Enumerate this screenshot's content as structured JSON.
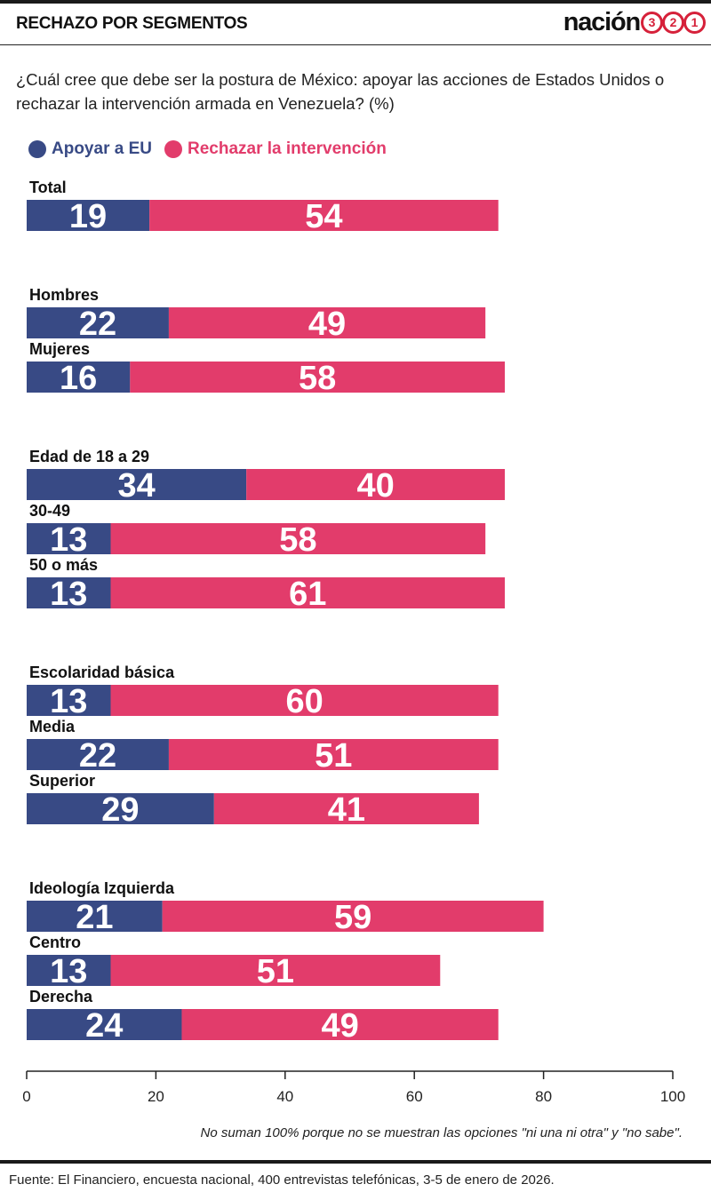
{
  "header": {
    "title": "RECHAZO POR SEGMENTOS",
    "logo_word": "nación",
    "logo_digits": [
      "3",
      "2",
      "1"
    ]
  },
  "question": "¿Cuál cree que debe ser la postura de México: apoyar las acciones de Estados Unidos o rechazar la intervención armada en Venezuela? (%)",
  "legend": {
    "support": "Apoyar a EU",
    "reject": "Rechazar la intervención"
  },
  "colors": {
    "support": "#384a85",
    "reject": "#e23c6b",
    "axis": "#222222",
    "logo_red": "#d6213a"
  },
  "chart_data": {
    "type": "bar",
    "orientation": "horizontal",
    "stacked": true,
    "categories": [
      "Total",
      "Hombres",
      "Mujeres",
      "Edad de 18 a 29",
      "30-49",
      "50 o más",
      "Escolaridad básica",
      "Media",
      "Superior",
      "Ideología Izquierda",
      "Centro",
      "Derecha"
    ],
    "groups": [
      [
        "Total"
      ],
      [
        "Hombres",
        "Mujeres"
      ],
      [
        "Edad de 18 a 29",
        "30-49",
        "50 o más"
      ],
      [
        "Escolaridad básica",
        "Media",
        "Superior"
      ],
      [
        "Ideología Izquierda",
        "Centro",
        "Derecha"
      ]
    ],
    "series": [
      {
        "name": "Apoyar a EU",
        "values": [
          19,
          22,
          16,
          34,
          13,
          13,
          13,
          22,
          29,
          21,
          13,
          24
        ]
      },
      {
        "name": "Rechazar la intervención",
        "values": [
          54,
          49,
          58,
          40,
          58,
          61,
          60,
          51,
          41,
          59,
          51,
          49
        ]
      }
    ],
    "xlim": [
      0,
      100
    ],
    "xticks": [
      0,
      20,
      40,
      60,
      80,
      100
    ],
    "title": "RECHAZO POR SEGMENTOS",
    "xlabel": "",
    "ylabel": ""
  },
  "note": "No suman 100% porque no se muestran las opciones \"ni una ni otra\" y \"no sabe\".",
  "source": "Fuente: El Financiero, encuesta nacional, 400 entrevistas telefónicas, 3-5 de enero de 2026."
}
